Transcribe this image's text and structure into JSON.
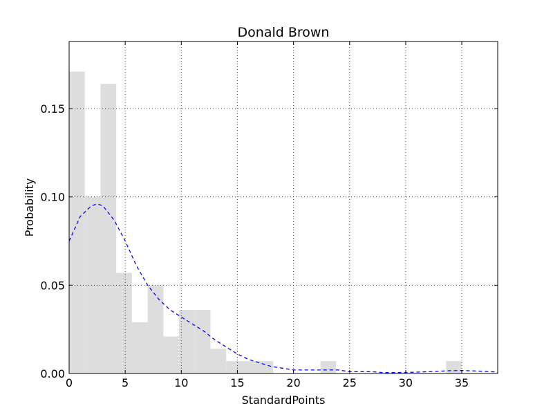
{
  "chart_data": {
    "type": "bar",
    "title": "Donald Brown",
    "xlabel": "StandardPoints",
    "ylabel": "Probability",
    "xlim": [
      0,
      38.2
    ],
    "ylim": [
      0,
      0.188
    ],
    "grid": true,
    "x_ticks": [
      0,
      5,
      10,
      15,
      20,
      25,
      30,
      35
    ],
    "x_tick_labels": [
      "0",
      "5",
      "10",
      "15",
      "20",
      "25",
      "30",
      "35"
    ],
    "y_ticks": [
      0.0,
      0.05,
      0.1,
      0.15
    ],
    "y_tick_labels": [
      "0.00",
      "0.05",
      "0.10",
      "0.15"
    ],
    "histogram": {
      "bin_width": 1.4,
      "bin_starts": [
        0,
        1.4,
        2.8,
        4.2,
        5.6,
        7.0,
        8.4,
        9.8,
        11.2,
        12.6,
        14.0,
        15.4,
        16.8,
        22.4,
        33.6
      ],
      "values": [
        0.171,
        0.1,
        0.164,
        0.057,
        0.029,
        0.05,
        0.021,
        0.036,
        0.036,
        0.014,
        0.007,
        0.007,
        0.007,
        0.007,
        0.007
      ]
    },
    "series": [
      {
        "x": [
          0,
          1,
          2,
          2.5,
          3,
          4,
          5,
          6,
          7,
          8,
          9,
          10,
          11,
          12,
          13,
          14,
          15,
          16,
          17,
          18,
          19,
          20,
          21,
          22,
          23,
          24,
          25,
          26,
          27,
          28,
          29,
          30,
          31,
          32,
          33,
          34,
          35,
          36,
          37,
          38.2
        ],
        "y": [
          0.075,
          0.089,
          0.095,
          0.096,
          0.095,
          0.087,
          0.075,
          0.061,
          0.05,
          0.042,
          0.036,
          0.032,
          0.028,
          0.024,
          0.019,
          0.015,
          0.011,
          0.008,
          0.006,
          0.004,
          0.003,
          0.002,
          0.002,
          0.002,
          0.002,
          0.002,
          0.001,
          0.001,
          0.001,
          0.0005,
          0.0005,
          0.0006,
          0.0008,
          0.001,
          0.0013,
          0.0016,
          0.0017,
          0.0015,
          0.0012,
          0.0008
        ],
        "color": "#0000ff",
        "style": "dashed"
      }
    ]
  }
}
